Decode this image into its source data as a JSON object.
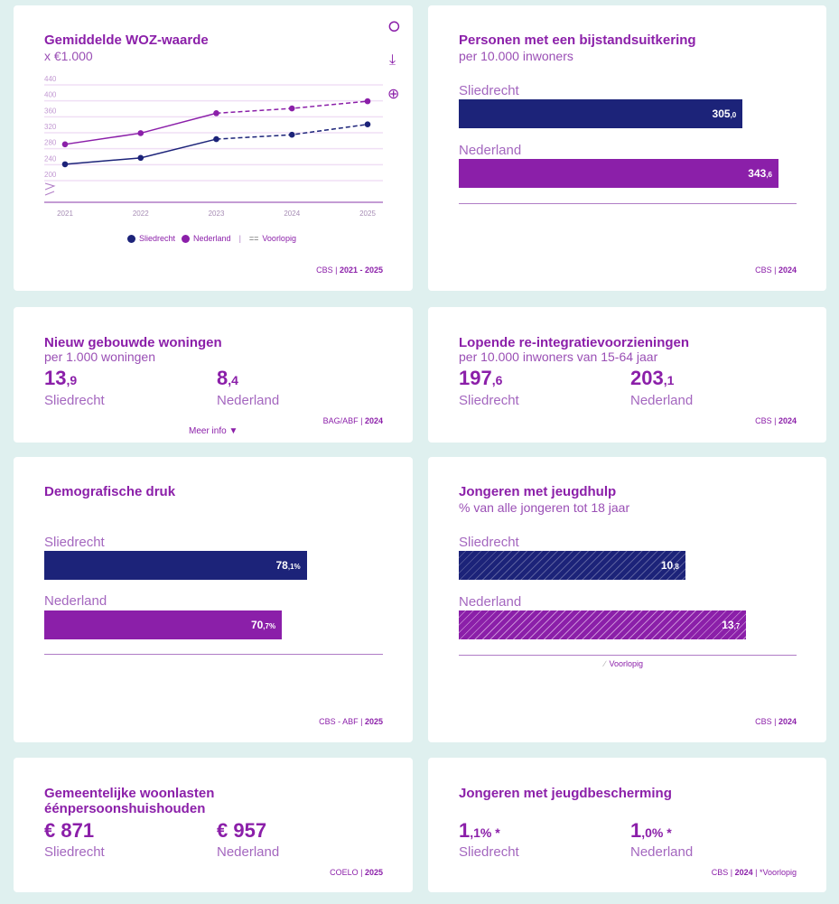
{
  "colors": {
    "sliedrecht": "#1c2379",
    "nederland": "#8b1fa9",
    "background": "#dff0ef"
  },
  "woz": {
    "title": "Gemiddelde WOZ-waarde",
    "subtitle": "x €1.000",
    "source": "CBS",
    "years": "2021 - 2025",
    "icons": [
      "share-icon",
      "download-icon",
      "zoom-in-icon"
    ],
    "legend": {
      "s": "Sliedrecht",
      "n": "Nederland",
      "v": "Voorlopig"
    },
    "chart_data": {
      "type": "line",
      "x": [
        "2021",
        "2022",
        "2023",
        "2024",
        "2025"
      ],
      "yticks": [
        "200",
        "240",
        "280",
        "320",
        "360",
        "400",
        "440"
      ],
      "ylim": [
        200,
        440
      ],
      "axis_break": true,
      "grid": true,
      "legend": "bottom",
      "provisional_from": "2023",
      "series": [
        {
          "name": "Sliedrecht",
          "values": [
            241,
            257,
            304,
            315,
            341
          ]
        },
        {
          "name": "Nederland",
          "values": [
            291,
            319,
            369,
            381,
            399
          ]
        }
      ]
    }
  },
  "bijstand": {
    "title": "Personen met een bijstandsuitkering",
    "subtitle": "per 10.000 inwoners",
    "source": "CBS",
    "year": "2024",
    "rows": [
      {
        "label": "Sliedrecht",
        "int": "305",
        "dec": ",0",
        "value": 305.0
      },
      {
        "label": "Nederland",
        "int": "343",
        "dec": ",6",
        "value": 343.6
      }
    ]
  },
  "woningen": {
    "title": "Nieuw gebouwde woningen",
    "subtitle": "per 1.000 woningen",
    "source": "BAG/ABF",
    "year": "2024",
    "more": "Meer info",
    "s": {
      "int": "13",
      "dec": ",9",
      "label": "Sliedrecht"
    },
    "n": {
      "int": "8",
      "dec": ",4",
      "label": "Nederland"
    }
  },
  "reintegratie": {
    "title": "Lopende re-integratievoorzieningen",
    "subtitle": "per 10.000 inwoners van 15-64 jaar",
    "source": "CBS",
    "year": "2024",
    "s": {
      "int": "197",
      "dec": ",6",
      "label": "Sliedrecht"
    },
    "n": {
      "int": "203",
      "dec": ",1",
      "label": "Nederland"
    }
  },
  "demo": {
    "title": "Demografische druk",
    "source": "CBS - ABF",
    "year": "2025",
    "rows": [
      {
        "label": "Sliedrecht",
        "int": "78",
        "dec": ",1%",
        "value": 78.1
      },
      {
        "label": "Nederland",
        "int": "70",
        "dec": ",7%",
        "value": 70.7
      }
    ]
  },
  "jeugdhulp": {
    "title": "Jongeren met jeugdhulp",
    "subtitle": "% van alle jongeren tot 18 jaar",
    "source": "CBS",
    "year": "2024",
    "legend": "Voorlopig",
    "rows": [
      {
        "label": "Sliedrecht",
        "int": "10",
        "dec": ",8",
        "value": 10.8
      },
      {
        "label": "Nederland",
        "int": "13",
        "dec": ",7",
        "value": 13.7
      }
    ]
  },
  "woonlasten": {
    "title": "Gemeentelijke woonlasten",
    "title2": "éénpersoonshuishouden",
    "source": "COELO",
    "year": "2025",
    "s": {
      "value": "€ 871",
      "label": "Sliedrecht"
    },
    "n": {
      "value": "€ 957",
      "label": "Nederland"
    }
  },
  "jeugdbescherming": {
    "title": "Jongeren met jeugdbescherming",
    "source": "CBS",
    "year": "2024",
    "note": "*Voorlopig",
    "s": {
      "int": "1",
      "dec": ",1%",
      "star": " *",
      "label": "Sliedrecht"
    },
    "n": {
      "int": "1",
      "dec": ",0%",
      "star": " *",
      "label": "Nederland"
    }
  }
}
